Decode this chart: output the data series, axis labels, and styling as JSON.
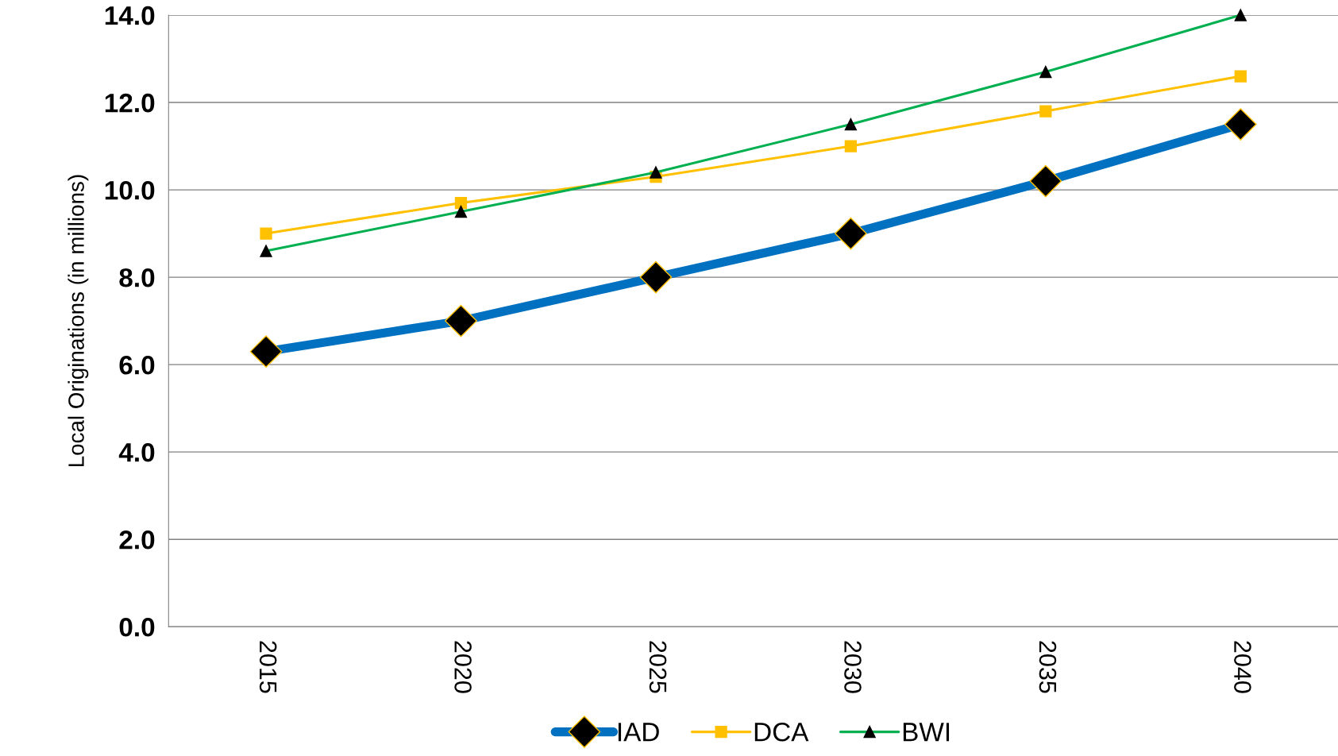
{
  "chart_data": {
    "type": "line",
    "ylabel": "Local Originations (in millions)",
    "categories": [
      "2015",
      "2020",
      "2025",
      "2030",
      "2035",
      "2040"
    ],
    "series": [
      {
        "name": "IAD",
        "color": "#0070c0",
        "marker": "diamond",
        "values": [
          6.3,
          7.0,
          8.0,
          9.0,
          10.2,
          11.5
        ]
      },
      {
        "name": "DCA",
        "color": "#ffc000",
        "marker": "square",
        "values": [
          9.0,
          9.7,
          10.3,
          11.0,
          11.8,
          12.6
        ]
      },
      {
        "name": "BWI",
        "color": "#00b050",
        "marker": "triangle",
        "values": [
          8.6,
          9.5,
          10.4,
          11.5,
          12.7,
          14.0
        ]
      }
    ],
    "ylim": [
      0,
      14
    ],
    "yticks": [
      {
        "value": 0,
        "label": "0.0"
      },
      {
        "value": 2,
        "label": "2.0"
      },
      {
        "value": 4,
        "label": "4.0"
      },
      {
        "value": 6,
        "label": "6.0"
      },
      {
        "value": 8,
        "label": "8.0"
      },
      {
        "value": 10,
        "label": "10.0"
      },
      {
        "value": 12,
        "label": "12.0"
      },
      {
        "value": 14,
        "label": "14.0"
      }
    ],
    "grid": "y",
    "legend": "bottom"
  }
}
